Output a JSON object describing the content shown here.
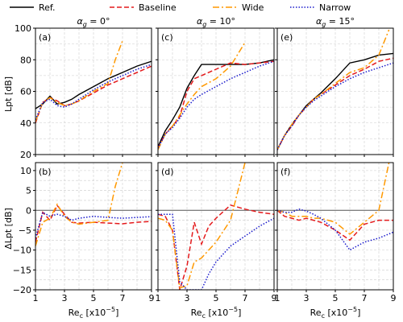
{
  "legend": [
    {
      "name": "Ref.",
      "color": "#000000",
      "dash": "solid"
    },
    {
      "name": "Baseline",
      "color": "#e41a1c",
      "dash": "dashed"
    },
    {
      "name": "Wide",
      "color": "#ff9900",
      "dash": "dashdot"
    },
    {
      "name": "Narrow",
      "color": "#1a1acc",
      "dash": "dotted"
    }
  ],
  "columns": [
    {
      "title": "αg = 0°",
      "alpha_deg": 0
    },
    {
      "title": "αg = 10°",
      "alpha_deg": 10
    },
    {
      "title": "αg = 15°",
      "alpha_deg": 15
    }
  ],
  "row_labels": [
    "Lpt [dB]",
    "ΔLpt [dB]"
  ],
  "xlabel": "Rec [x10⁻⁵]",
  "xticks": [
    "1",
    "3",
    "5",
    "7",
    "9"
  ],
  "top_yticks": [
    "20",
    "40",
    "60",
    "80",
    "100"
  ],
  "bottom_yticks": [
    "-20",
    "-15",
    "-10",
    "-5",
    "0",
    "5",
    "10"
  ],
  "chart_data": [
    {
      "panel": "(a)",
      "type": "line",
      "xlim": [
        1,
        9
      ],
      "ylim": [
        20,
        100
      ],
      "grid": true,
      "series": [
        {
          "name": "Ref.",
          "x": [
            1,
            1.5,
            2,
            2.5,
            3,
            3.5,
            4,
            5,
            6,
            7,
            8,
            9
          ],
          "y": [
            49,
            52,
            57,
            52,
            53,
            55,
            58,
            63,
            68,
            72,
            76,
            79
          ]
        },
        {
          "name": "Baseline",
          "x": [
            1,
            1.5,
            2,
            2.5,
            3,
            3.5,
            4,
            5,
            6,
            7,
            8,
            9
          ],
          "y": [
            40,
            53,
            56,
            54,
            51,
            52,
            54,
            59,
            64,
            68,
            72,
            76
          ]
        },
        {
          "name": "Wide",
          "x": [
            1,
            1.5,
            2,
            2.5,
            3,
            3.5,
            4,
            5,
            6,
            6.5,
            7
          ],
          "y": [
            41,
            53,
            56,
            53,
            51,
            52,
            54,
            60,
            65,
            80,
            92
          ]
        },
        {
          "name": "Narrow",
          "x": [
            1,
            1.5,
            2,
            2.5,
            3,
            3.5,
            4,
            5,
            6,
            7,
            8,
            9
          ],
          "y": [
            42,
            53,
            55,
            51,
            50,
            52,
            55,
            61,
            66,
            70,
            74,
            77
          ]
        }
      ]
    },
    {
      "panel": "(c)",
      "type": "line",
      "xlim": [
        1,
        9
      ],
      "ylim": [
        20,
        100
      ],
      "grid": true,
      "series": [
        {
          "name": "Ref.",
          "x": [
            1,
            1.5,
            2,
            2.5,
            3,
            3.5,
            4,
            5,
            6,
            7,
            8,
            9
          ],
          "y": [
            25,
            35,
            42,
            50,
            62,
            70,
            77,
            77,
            77,
            77,
            78,
            80
          ]
        },
        {
          "name": "Baseline",
          "x": [
            1,
            1.5,
            2,
            2.5,
            3,
            3.5,
            4,
            5,
            6,
            7,
            8,
            9
          ],
          "y": [
            24,
            33,
            38,
            44,
            60,
            68,
            70,
            74,
            78,
            77,
            78,
            79
          ]
        },
        {
          "name": "Wide",
          "x": [
            1,
            1.5,
            2,
            2.5,
            3,
            3.5,
            4,
            5,
            6,
            7
          ],
          "y": [
            23,
            33,
            38,
            45,
            52,
            58,
            63,
            68,
            76,
            91
          ]
        },
        {
          "name": "Narrow",
          "x": [
            1,
            1.5,
            2,
            2.5,
            3,
            3.5,
            4,
            5,
            6,
            7,
            8,
            9
          ],
          "y": [
            24,
            33,
            37,
            43,
            50,
            55,
            58,
            63,
            68,
            72,
            76,
            79
          ]
        }
      ]
    },
    {
      "panel": "(e)",
      "type": "line",
      "xlim": [
        1,
        9
      ],
      "ylim": [
        20,
        100
      ],
      "grid": true,
      "series": [
        {
          "name": "Ref.",
          "x": [
            1,
            1.5,
            2,
            2.5,
            3,
            3.5,
            4,
            5,
            6,
            7,
            8,
            9
          ],
          "y": [
            23,
            32,
            39,
            45,
            51,
            55,
            59,
            68,
            78,
            80,
            83,
            84
          ]
        },
        {
          "name": "Baseline",
          "x": [
            1,
            1.5,
            2,
            2.5,
            3,
            3.5,
            4,
            5,
            6,
            7,
            8,
            9
          ],
          "y": [
            23,
            32,
            38,
            45,
            50,
            55,
            58,
            64,
            70,
            74,
            79,
            81
          ]
        },
        {
          "name": "Wide",
          "x": [
            1,
            1.5,
            2,
            2.5,
            3,
            3.5,
            4,
            5,
            6,
            7,
            8,
            8.7
          ],
          "y": [
            23,
            32,
            39,
            45,
            50,
            55,
            58,
            65,
            72,
            75,
            83,
            99
          ]
        },
        {
          "name": "Narrow",
          "x": [
            1,
            1.5,
            2,
            2.5,
            3,
            3.5,
            4,
            5,
            6,
            7,
            8,
            9
          ],
          "y": [
            23,
            32,
            38,
            45,
            50,
            54,
            57,
            63,
            68,
            72,
            75,
            78
          ]
        }
      ]
    },
    {
      "panel": "(b)",
      "type": "line",
      "xlim": [
        1,
        9
      ],
      "ylim": [
        -20,
        12
      ],
      "grid": true,
      "series": [
        {
          "name": "Baseline",
          "x": [
            1,
            1.5,
            2,
            2.5,
            3,
            3.5,
            4,
            5,
            6,
            7,
            8,
            9
          ],
          "y": [
            -8,
            -0.5,
            -2.5,
            1.2,
            -1,
            -3,
            -3.2,
            -3,
            -3.2,
            -3.4,
            -3,
            -2.8
          ]
        },
        {
          "name": "Wide",
          "x": [
            1,
            1.5,
            2,
            2.5,
            3,
            3.5,
            4,
            5,
            6,
            6.5,
            7
          ],
          "y": [
            -9,
            -3,
            -2,
            1.5,
            -1.5,
            -3,
            -3.5,
            -3,
            -2.5,
            6,
            12
          ]
        },
        {
          "name": "Narrow",
          "x": [
            1,
            1.5,
            2,
            2.5,
            3,
            3.5,
            4,
            5,
            6,
            7,
            8,
            9
          ],
          "y": [
            -7,
            -0.5,
            -1.5,
            -1,
            -1.5,
            -2.5,
            -2,
            -1.5,
            -1.8,
            -2,
            -1.8,
            -1.6
          ]
        }
      ]
    },
    {
      "panel": "(d)",
      "type": "line",
      "xlim": [
        1,
        9
      ],
      "ylim": [
        -20,
        12
      ],
      "grid": true,
      "series": [
        {
          "name": "Baseline",
          "x": [
            1,
            1.5,
            2,
            2.5,
            3,
            3.5,
            4,
            4.5,
            5,
            6,
            7,
            8,
            9
          ],
          "y": [
            -1,
            -1.5,
            -5,
            -20,
            -14,
            -3,
            -8.5,
            -4,
            -2,
            1.3,
            0.3,
            -0.5,
            -1
          ]
        },
        {
          "name": "Wide",
          "x": [
            1,
            1.5,
            2,
            2.5,
            3,
            3.5,
            4,
            4.5,
            5,
            6,
            7
          ],
          "y": [
            -2,
            -2.5,
            -5,
            -19.5,
            -19,
            -13,
            -12,
            -10,
            -8,
            -2.5,
            12
          ]
        },
        {
          "name": "Narrow",
          "x": [
            1,
            1.5,
            2,
            2.5,
            3,
            3.5,
            4,
            4.5,
            5,
            6,
            7,
            8,
            9
          ],
          "y": [
            -1,
            -1,
            -1,
            -18,
            -20,
            -20,
            -20,
            -16,
            -13,
            -9,
            -6.5,
            -4,
            -2
          ]
        }
      ]
    },
    {
      "panel": "(f)",
      "type": "line",
      "xlim": [
        1,
        9
      ],
      "ylim": [
        -20,
        12
      ],
      "grid": true,
      "series": [
        {
          "name": "Baseline",
          "x": [
            1,
            1.5,
            2,
            2.5,
            3,
            3.5,
            4,
            5,
            6,
            7,
            8,
            9
          ],
          "y": [
            0,
            -1.5,
            -2,
            -2.5,
            -2,
            -2.5,
            -3,
            -5,
            -7.5,
            -3.5,
            -2.5,
            -2.5
          ]
        },
        {
          "name": "Wide",
          "x": [
            1,
            1.5,
            2,
            2.5,
            3,
            3.5,
            4,
            5,
            6,
            7,
            8,
            8.7
          ],
          "y": [
            0,
            -0.5,
            -1.5,
            -1.5,
            -1.5,
            -2,
            -2,
            -3,
            -6,
            -3,
            0,
            12
          ]
        },
        {
          "name": "Narrow",
          "x": [
            1,
            1.5,
            2,
            2.5,
            3,
            3.5,
            4,
            5,
            6,
            7,
            8,
            9
          ],
          "y": [
            0,
            -0.5,
            -0.5,
            0.3,
            -0.2,
            -1,
            -2,
            -5,
            -10,
            -8,
            -7,
            -5.5
          ]
        }
      ]
    }
  ]
}
